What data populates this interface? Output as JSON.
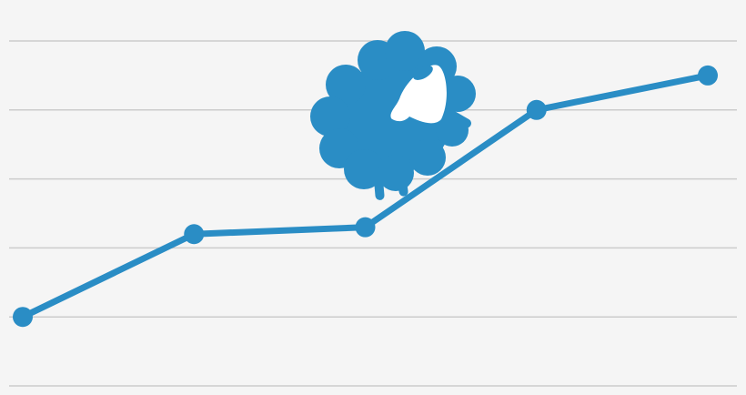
{
  "chart_data": {
    "type": "line",
    "title": "",
    "xlabel": "",
    "ylabel": "",
    "x": [
      1,
      2,
      3,
      4,
      5
    ],
    "values": [
      1.0,
      2.2,
      2.3,
      4.0,
      4.5
    ],
    "ylim": [
      0,
      5
    ],
    "grid": true,
    "gridlines": [
      0,
      1,
      2,
      3,
      4,
      5
    ],
    "legend": "none",
    "colors": {
      "line": "#2a8dc5",
      "grid": "#cccccc",
      "background": "#f5f5f5"
    }
  },
  "logo": {
    "icon": "sheep-icon",
    "color": "#2a8dc5",
    "face_color": "#ffffff"
  }
}
